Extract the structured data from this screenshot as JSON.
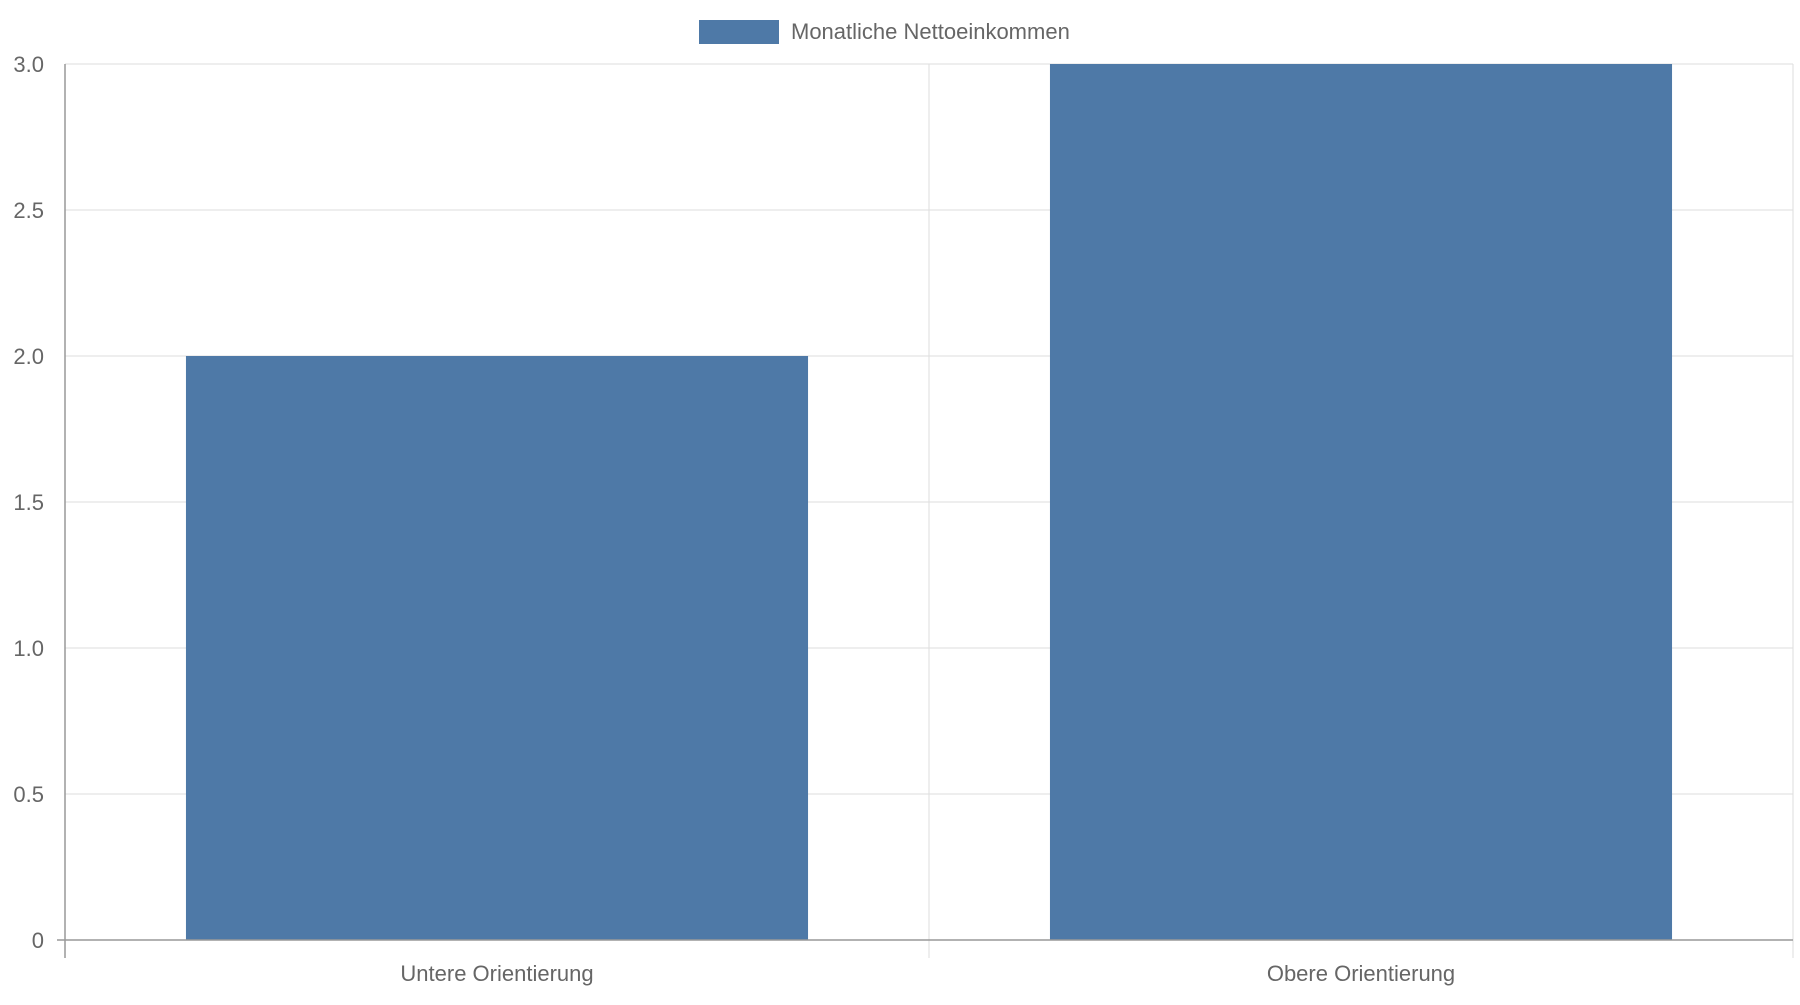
{
  "chart_data": {
    "type": "bar",
    "title": "",
    "xlabel": "",
    "ylabel": "",
    "categories": [
      "Untere Orientierung",
      "Obere Orientierung"
    ],
    "series": [
      {
        "name": "Monatliche Nettoeinkommen",
        "values": [
          2,
          3
        ],
        "color": "#4e79a7"
      }
    ],
    "ylim": [
      0,
      3
    ],
    "yticks": [
      "0",
      "0.5",
      "1.0",
      "1.5",
      "2.0",
      "2.5",
      "3.0"
    ],
    "grid": true,
    "legend_position": "top-center"
  }
}
